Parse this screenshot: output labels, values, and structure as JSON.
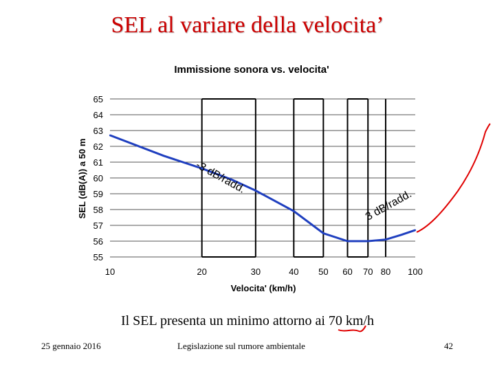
{
  "slide": {
    "title": "SEL al variare della velocita’",
    "caption": "Il SEL presenta un minimo attorno ai 70 km/h",
    "footer_date": "25 gennaio 2016",
    "footer_course": "Legislazione sul rumore ambientale",
    "page_number": "42"
  },
  "chart_data": {
    "type": "line",
    "title": "Immissione sonora vs. velocita'",
    "xlabel": "Velocita' (km/h)",
    "ylabel": "SEL (dB(A)) a 50 m",
    "x_scale": "log",
    "x_ticks": [
      10,
      20,
      30,
      40,
      50,
      60,
      70,
      80,
      100
    ],
    "y_ticks": [
      55,
      56,
      57,
      58,
      59,
      60,
      61,
      62,
      63,
      64,
      65
    ],
    "ylim": [
      55,
      65
    ],
    "grid": true,
    "series": [
      {
        "x": [
          10,
          15,
          20,
          25,
          30,
          40,
          50,
          60,
          70,
          80,
          90,
          100
        ],
        "y": [
          62.7,
          61.4,
          60.6,
          59.9,
          59.2,
          57.9,
          56.5,
          56,
          56,
          56.1,
          56.4,
          56.7
        ],
        "color": "#1f3fbf"
      }
    ],
    "annotations": [
      {
        "text": "-3 dB/radd.",
        "at_x": 19,
        "at_y": 60.7
      },
      {
        "text": "3 dB/radd.",
        "at_x": 70,
        "at_y": 57.3
      }
    ],
    "highlight_color": "#e00000"
  }
}
